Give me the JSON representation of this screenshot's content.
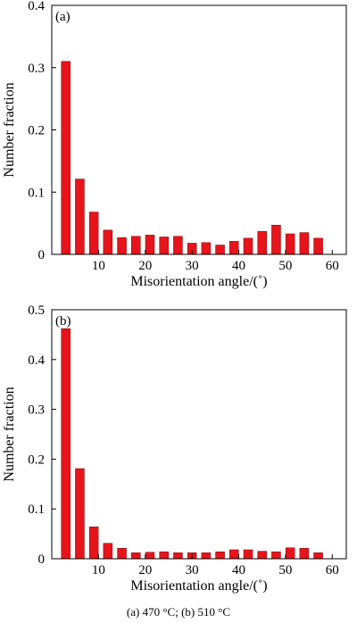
{
  "caption": "(a) 470 °C; (b) 510 °C",
  "colors": {
    "bar": "#e8141c",
    "bar_edge": "#7a0000",
    "axis": "#000000"
  },
  "chart_data": [
    {
      "type": "bar",
      "panel": "(a)",
      "xlabel": "Misorientation angle/(˚)",
      "ylabel": "Number fraction",
      "x": [
        3,
        6,
        9,
        12,
        15,
        18,
        21,
        24,
        27,
        30,
        33,
        36,
        39,
        42,
        45,
        48,
        51,
        54,
        57,
        60
      ],
      "values": [
        0.31,
        0.121,
        0.068,
        0.039,
        0.027,
        0.029,
        0.031,
        0.028,
        0.029,
        0.018,
        0.019,
        0.015,
        0.021,
        0.026,
        0.037,
        0.047,
        0.033,
        0.035,
        0.026,
        0
      ],
      "xlim": [
        0,
        63
      ],
      "ylim": [
        0,
        0.4
      ],
      "xticks": [
        10,
        20,
        30,
        40,
        50,
        60
      ],
      "yticks": [
        0,
        0.1,
        0.2,
        0.3,
        0.4
      ],
      "ytick_labels": [
        "0",
        "0.1",
        "0.2",
        "0.3",
        "0.4"
      ],
      "grid": false,
      "legend": "none"
    },
    {
      "type": "bar",
      "panel": "(b)",
      "xlabel": "Misorientation angle/(˚)",
      "ylabel": "Number fraction",
      "x": [
        3,
        6,
        9,
        12,
        15,
        18,
        21,
        24,
        27,
        30,
        33,
        36,
        39,
        42,
        45,
        48,
        51,
        54,
        57,
        60
      ],
      "values": [
        0.462,
        0.181,
        0.064,
        0.031,
        0.021,
        0.012,
        0.013,
        0.014,
        0.012,
        0.012,
        0.012,
        0.014,
        0.018,
        0.018,
        0.015,
        0.014,
        0.022,
        0.021,
        0.012,
        0
      ],
      "xlim": [
        0,
        63
      ],
      "ylim": [
        0,
        0.5
      ],
      "xticks": [
        10,
        20,
        30,
        40,
        50,
        60
      ],
      "yticks": [
        0,
        0.1,
        0.2,
        0.3,
        0.4,
        0.5
      ],
      "ytick_labels": [
        "0",
        "0.1",
        "0.2",
        "0.3",
        "0.4",
        "0.5"
      ],
      "grid": false,
      "legend": "none"
    }
  ]
}
